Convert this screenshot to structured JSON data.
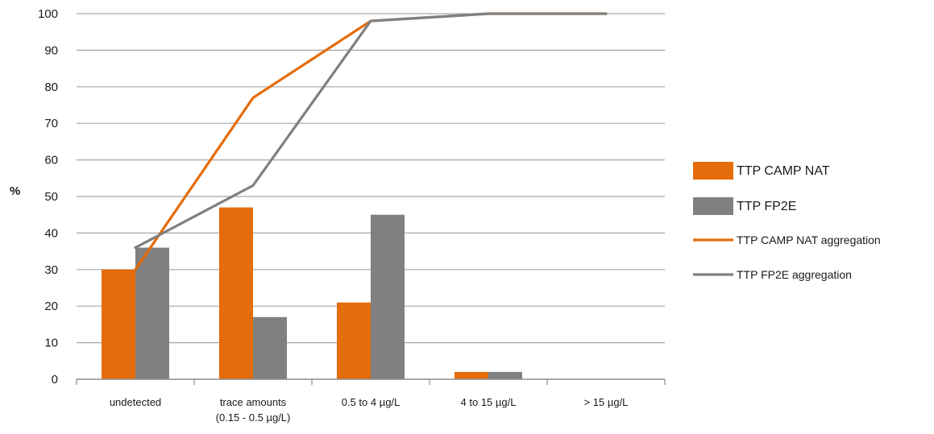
{
  "chart_data": {
    "type": "bar",
    "title": "",
    "xlabel": "",
    "ylabel": "%",
    "ylim": [
      0,
      100
    ],
    "yticks": [
      "0",
      "10",
      "20",
      "30",
      "40",
      "50",
      "60",
      "70",
      "80",
      "90",
      "100"
    ],
    "grid": true,
    "legend_position": "right",
    "categories": [
      [
        "undetected"
      ],
      [
        "trace amounts",
        "(0.15 - 0.5 µg/L)"
      ],
      [
        "0.5 to 4 µg/L"
      ],
      [
        "4 to 15 µg/L"
      ],
      [
        "> 15 µg/L"
      ]
    ],
    "series": [
      {
        "name": "TTP CAMP NAT",
        "kind": "bar",
        "color": "#e46c0a",
        "values": [
          30,
          47,
          21,
          2,
          0
        ]
      },
      {
        "name": "TTP FP2E",
        "kind": "bar",
        "color": "#808080",
        "values": [
          36,
          17,
          45,
          2,
          0
        ]
      },
      {
        "name": "TTP CAMP NAT aggregation",
        "kind": "line",
        "color": "#e46c0a",
        "values": [
          30,
          77,
          98,
          100,
          100
        ]
      },
      {
        "name": "TTP FP2E aggregation",
        "kind": "line",
        "color": "#808080",
        "values": [
          36,
          53,
          98,
          100,
          100
        ]
      }
    ]
  }
}
